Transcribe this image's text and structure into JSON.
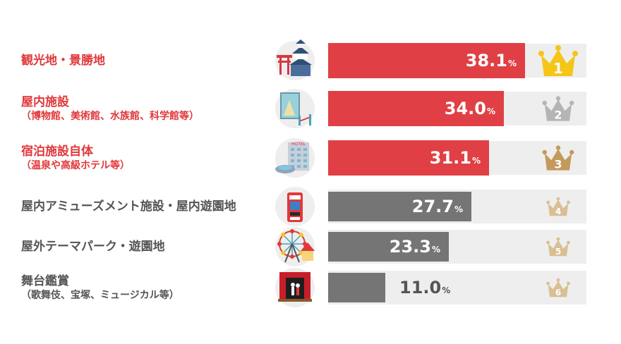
{
  "chart_data": {
    "type": "bar",
    "orientation": "horizontal",
    "unit": "%",
    "categories": [
      "観光地・景勝地",
      "屋内施設（博物館、美術館、水族館、科学館等）",
      "宿泊施設自体（温泉や高級ホテル等）",
      "屋内アミューズメント施設・屋内遊園地",
      "屋外テーマパーク・遊園地",
      "舞台鑑賞（歌舞伎、宝塚、ミュージカル等）"
    ],
    "values": [
      38.1,
      34.0,
      31.1,
      27.7,
      23.3,
      11.0
    ],
    "xlim": [
      0,
      50
    ],
    "grid": false,
    "legend": "none",
    "colors": {
      "top3": "#e04045",
      "rest": "#757575",
      "track": "#eeeeee",
      "gold": "#f5c518",
      "silver": "#b5b5b5",
      "bronze": "#c49a5c",
      "light": "#d9bf94"
    }
  },
  "rows": [
    {
      "label_line1": "観光地・景勝地",
      "label_line2": "",
      "value_text": "38.1",
      "pct": "%",
      "rank": "1",
      "icon": "castle-icon",
      "crown": "gold"
    },
    {
      "label_line1": "屋内施設",
      "label_line2": "（博物館、美術館、水族館、科学館等）",
      "value_text": "34.0",
      "pct": "%",
      "rank": "2",
      "icon": "museum-icon",
      "crown": "silver"
    },
    {
      "label_line1": "宿泊施設自体",
      "label_line2": "（温泉や高級ホテル等）",
      "value_text": "31.1",
      "pct": "%",
      "rank": "3",
      "icon": "hotel-icon",
      "crown": "bronze"
    },
    {
      "label_line1": "屋内アミューズメント施設・屋内遊園地",
      "label_line2": "",
      "value_text": "27.7",
      "pct": "%",
      "rank": "4",
      "icon": "arcade-icon",
      "crown": "light"
    },
    {
      "label_line1": "屋外テーマパーク・遊園地",
      "label_line2": "",
      "value_text": "23.3",
      "pct": "%",
      "rank": "5",
      "icon": "ferris-wheel-icon",
      "crown": "light"
    },
    {
      "label_line1": "舞台鑑賞",
      "label_line2": "（歌舞伎、宝塚、ミュージカル等）",
      "value_text": "11.0",
      "pct": "%",
      "rank": "6",
      "icon": "theater-stage-icon",
      "crown": "light"
    }
  ]
}
